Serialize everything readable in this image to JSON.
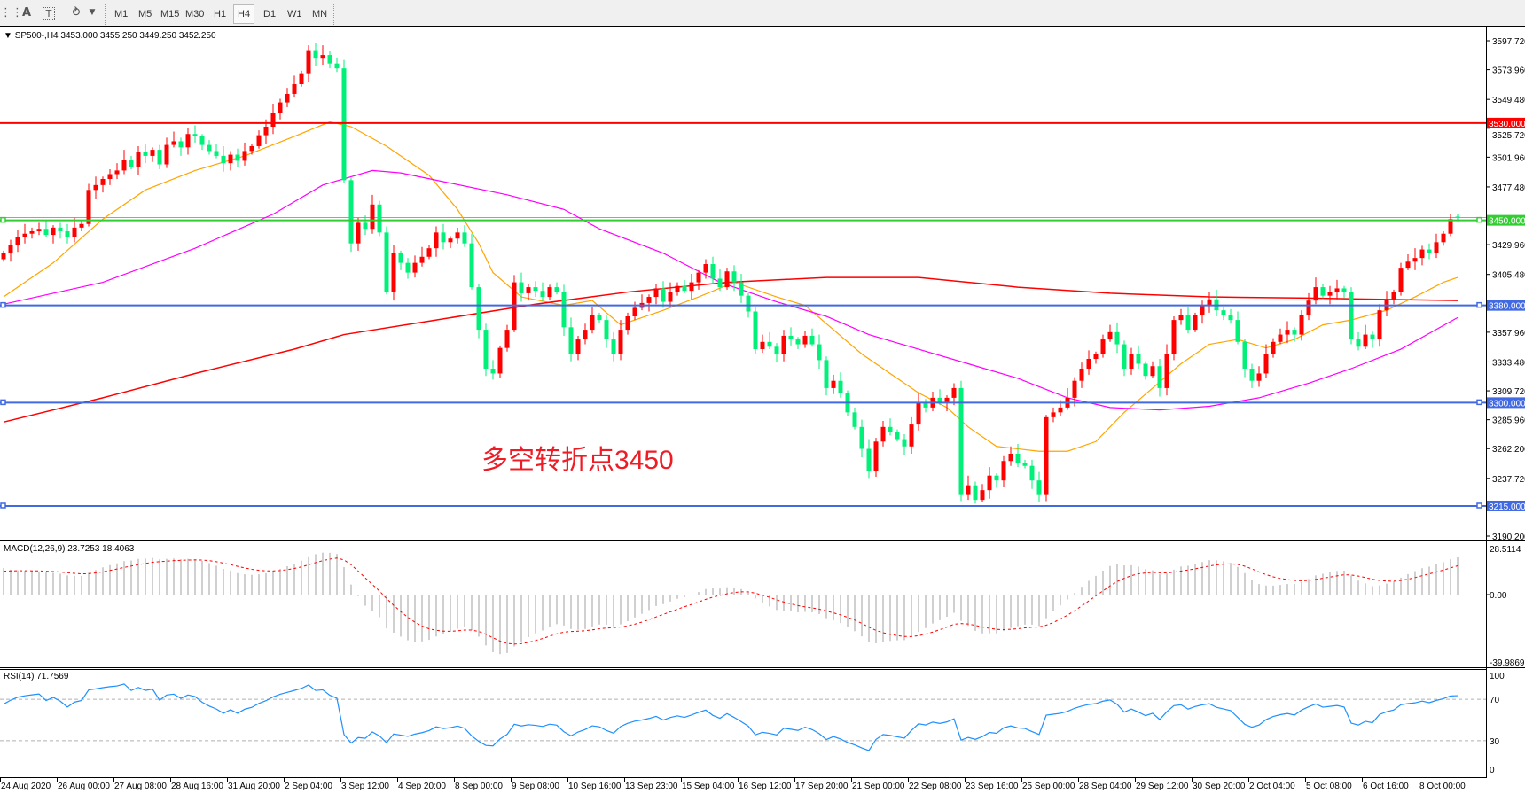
{
  "toolbar": {
    "icons": [
      "grid-icon",
      "text-icon",
      "text-label-icon",
      "arrows-icon"
    ],
    "text_icon": "A",
    "timeframes": [
      "M1",
      "M5",
      "M15",
      "M30",
      "H1",
      "H4",
      "D1",
      "W1",
      "MN"
    ],
    "active_timeframe": "H4"
  },
  "header": {
    "symbol": "SP500-,H4",
    "ohlc": "3453.000 3455.250 3449.250 3452.250"
  },
  "annotation": "多空转折点3450",
  "colors": {
    "bull": "#ff0000",
    "bear": "#00f07a",
    "ma_fast": "#ffa500",
    "ma_mid": "#ff00ff",
    "ma_slow": "#ff0000",
    "level_resistance": "#ff0000",
    "level_pivot": "#32cd32",
    "level_support": "#4169e1",
    "macd_hist": "#c0c0c0",
    "macd_signal": "#ff0000",
    "rsi": "#1e90ff"
  },
  "chart_data": {
    "type": "candlestick",
    "price_axis": {
      "range": [
        3190.2,
        3597.72
      ],
      "ticks": [
        "3597.720",
        "3573.960",
        "3549.480",
        "3525.720",
        "3501.960",
        "3477.480",
        "3429.960",
        "3405.480",
        "3357.960",
        "3333.480",
        "3309.720",
        "3285.960",
        "3262.200",
        "3237.720",
        "3190.200"
      ]
    },
    "time_labels": [
      "24 Aug 2020",
      "26 Aug 00:00",
      "27 Aug 08:00",
      "28 Aug 16:00",
      "31 Aug 20:00",
      "2 Sep 04:00",
      "3 Sep 12:00",
      "4 Sep 20:00",
      "8 Sep 00:00",
      "9 Sep 08:00",
      "10 Sep 16:00",
      "13 Sep 23:00",
      "15 Sep 04:00",
      "16 Sep 12:00",
      "17 Sep 20:00",
      "21 Sep 00:00",
      "22 Sep 08:00",
      "23 Sep 16:00",
      "25 Sep 00:00",
      "28 Sep 04:00",
      "29 Sep 12:00",
      "30 Sep 20:00",
      "2 Oct 04:00",
      "5 Oct 08:00",
      "6 Oct 16:00",
      "8 Oct 00:00"
    ],
    "first_open": 3418,
    "closes": [
      3423,
      3430,
      3436,
      3439,
      3441,
      3443,
      3438,
      3444,
      3441,
      3436,
      3444,
      3447,
      3475,
      3479,
      3484,
      3488,
      3491,
      3500,
      3494,
      3506,
      3503,
      3508,
      3496,
      3512,
      3515,
      3510,
      3521,
      3519,
      3512,
      3507,
      3503,
      3497,
      3504,
      3499,
      3507,
      3511,
      3520,
      3527,
      3538,
      3547,
      3554,
      3562,
      3571,
      3590,
      3583,
      3586,
      3579,
      3575,
      3483,
      3431,
      3448,
      3443,
      3463,
      3440,
      3391,
      3423,
      3415,
      3407,
      3415,
      3420,
      3427,
      3440,
      3432,
      3435,
      3440,
      3431,
      3395,
      3360,
      3328,
      3324,
      3345,
      3360,
      3399,
      3390,
      3395,
      3392,
      3387,
      3395,
      3391,
      3362,
      3340,
      3352,
      3360,
      3372,
      3368,
      3352,
      3340,
      3360,
      3371,
      3378,
      3382,
      3387,
      3394,
      3383,
      3391,
      3396,
      3392,
      3399,
      3407,
      3414,
      3402,
      3395,
      3408,
      3399,
      3388,
      3375,
      3344,
      3350,
      3346,
      3340,
      3355,
      3352,
      3348,
      3355,
      3348,
      3335,
      3312,
      3318,
      3308,
      3292,
      3280,
      3262,
      3244,
      3268,
      3280,
      3276,
      3270,
      3264,
      3282,
      3300,
      3296,
      3304,
      3300,
      3304,
      3312,
      3224,
      3232,
      3220,
      3228,
      3240,
      3236,
      3252,
      3258,
      3250,
      3248,
      3236,
      3224,
      3288,
      3292,
      3296,
      3304,
      3318,
      3328,
      3336,
      3340,
      3352,
      3358,
      3348,
      3328,
      3340,
      3332,
      3322,
      3330,
      3312,
      3340,
      3368,
      3372,
      3360,
      3372,
      3380,
      3385,
      3376,
      3372,
      3368,
      3350,
      3328,
      3318,
      3324,
      3340,
      3350,
      3356,
      3360,
      3356,
      3372,
      3384,
      3395,
      3388,
      3391,
      3394,
      3391,
      3352,
      3346,
      3356,
      3352,
      3376,
      3385,
      3391,
      3411,
      3416,
      3419,
      3426,
      3423,
      3432,
      3439,
      3451,
      3452.25
    ],
    "last_bar": {
      "open": 3453.0,
      "high": 3455.25,
      "low": 3449.25,
      "close": 3452.25
    },
    "moving_averages": [
      {
        "role": "fast",
        "points": [
          [
            0,
            3387
          ],
          [
            7,
            3415
          ],
          [
            14,
            3451
          ],
          [
            20,
            3475
          ],
          [
            27,
            3491
          ],
          [
            34,
            3503
          ],
          [
            41,
            3519
          ],
          [
            46,
            3531
          ],
          [
            49,
            3527
          ],
          [
            54,
            3511
          ],
          [
            60,
            3487
          ],
          [
            64,
            3459
          ],
          [
            67,
            3431
          ],
          [
            69,
            3407
          ],
          [
            73,
            3387
          ],
          [
            79,
            3380
          ],
          [
            83,
            3384
          ],
          [
            87,
            3364
          ],
          [
            93,
            3376
          ],
          [
            98,
            3387
          ],
          [
            103,
            3399
          ],
          [
            109,
            3387
          ],
          [
            113,
            3380
          ],
          [
            117,
            3360
          ],
          [
            121,
            3340
          ],
          [
            125,
            3324
          ],
          [
            129,
            3308
          ],
          [
            133,
            3296
          ],
          [
            136,
            3280
          ],
          [
            140,
            3264
          ],
          [
            146,
            3260
          ],
          [
            150,
            3260
          ],
          [
            154,
            3268
          ],
          [
            158,
            3292
          ],
          [
            162,
            3312
          ],
          [
            166,
            3332
          ],
          [
            170,
            3348
          ],
          [
            174,
            3352
          ],
          [
            178,
            3345
          ],
          [
            182,
            3352
          ],
          [
            186,
            3364
          ],
          [
            190,
            3368
          ],
          [
            195,
            3376
          ],
          [
            199,
            3387
          ],
          [
            203,
            3399
          ],
          [
            205,
            3403
          ]
        ]
      },
      {
        "role": "mid",
        "points": [
          [
            0,
            3381
          ],
          [
            14,
            3399
          ],
          [
            27,
            3427
          ],
          [
            38,
            3455
          ],
          [
            45,
            3479
          ],
          [
            52,
            3491
          ],
          [
            56,
            3489
          ],
          [
            61,
            3483
          ],
          [
            71,
            3471
          ],
          [
            79,
            3459
          ],
          [
            84,
            3443
          ],
          [
            93,
            3423
          ],
          [
            101,
            3399
          ],
          [
            109,
            3383
          ],
          [
            116,
            3371
          ],
          [
            122,
            3356
          ],
          [
            129,
            3344
          ],
          [
            136,
            3332
          ],
          [
            143,
            3320
          ],
          [
            150,
            3304
          ],
          [
            156,
            3296
          ],
          [
            163,
            3294
          ],
          [
            170,
            3297
          ],
          [
            177,
            3304
          ],
          [
            184,
            3316
          ],
          [
            190,
            3328
          ],
          [
            197,
            3344
          ],
          [
            205,
            3370
          ]
        ]
      },
      {
        "role": "slow",
        "points": [
          [
            0,
            3284
          ],
          [
            14,
            3304
          ],
          [
            27,
            3324
          ],
          [
            41,
            3344
          ],
          [
            48,
            3356
          ],
          [
            61,
            3368
          ],
          [
            75,
            3381
          ],
          [
            88,
            3391
          ],
          [
            102,
            3399
          ],
          [
            116,
            3403
          ],
          [
            129,
            3403
          ],
          [
            143,
            3395
          ],
          [
            156,
            3390
          ],
          [
            170,
            3387
          ],
          [
            184,
            3386
          ],
          [
            205,
            3384
          ]
        ]
      }
    ],
    "levels": [
      {
        "price": 3530,
        "label": "3530.000",
        "role": "resistance"
      },
      {
        "price": 3450,
        "label": "3450.000",
        "role": "pivot"
      },
      {
        "price": 3380,
        "label": "3380.000",
        "role": "support"
      },
      {
        "price": 3300,
        "label": "3300.000",
        "role": "support"
      },
      {
        "price": 3215,
        "label": "3215.000",
        "role": "support"
      }
    ],
    "bid_price": 3452.25
  },
  "macd": {
    "label": "MACD(12,26,9) 23.7253 18.4063",
    "range": [
      -39.9869,
      28.5114
    ],
    "ticks": [
      "28.5114",
      "0.00",
      "-39.9869"
    ]
  },
  "rsi": {
    "label": "RSI(14) 71.7569",
    "levels": [
      70,
      30
    ],
    "ticks": [
      "100",
      "70",
      "30",
      "0"
    ]
  }
}
